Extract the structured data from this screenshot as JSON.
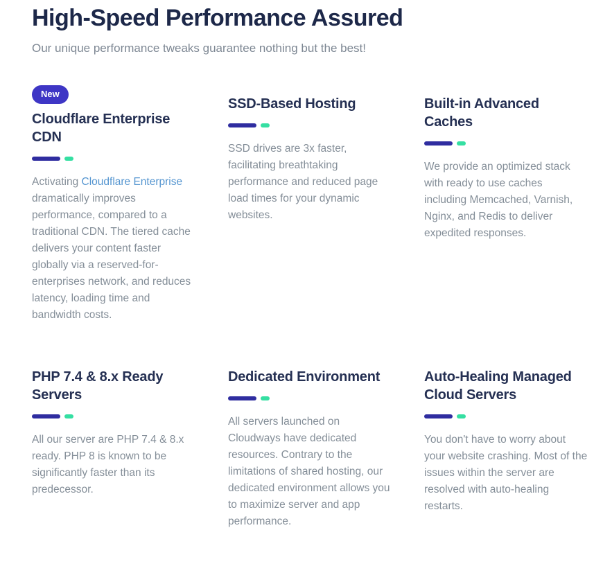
{
  "header": {
    "title": "High-Speed Performance Assured",
    "subtitle": "Our unique performance tweaks guarantee nothing but the best!"
  },
  "colors": {
    "heading": "#1d2849",
    "card_title": "#253053",
    "body_text": "#848e98",
    "badge_bg": "#3e36c5",
    "badge_text": "#ffffff",
    "underline_bar": "#2f2da0",
    "underline_dash": "#35dfa2",
    "link": "#5495d0",
    "background": "#ffffff"
  },
  "features": [
    {
      "badge": "New",
      "title": "Cloudflare Enterprise CDN",
      "body_prefix": "Activating ",
      "link_text": "Cloudflare Enterprise",
      "body_suffix": " dramatically improves performance, compared to a traditional CDN. The tiered cache delivers your content faster globally via a reserved-for-enterprises network, and reduces latency, loading time and bandwidth costs."
    },
    {
      "title": "SSD-Based Hosting",
      "body": "SSD drives are 3x faster, facilitating breathtaking performance and reduced page load times for your dynamic websites."
    },
    {
      "title": "Built-in Advanced Caches",
      "body": "We provide an optimized stack with ready to use caches including Memcached, Varnish, Nginx, and Redis to deliver expedited responses."
    },
    {
      "title": "PHP 7.4 & 8.x Ready Servers",
      "body": "All our server are PHP 7.4 & 8.x ready. PHP 8 is known to be significantly faster than its predecessor."
    },
    {
      "title": "Dedicated Environment",
      "body": "All servers launched on Cloudways have dedicated resources. Contrary to the limitations of shared hosting, our dedicated environment allows you to maximize server and app performance."
    },
    {
      "title": "Auto-Healing Managed Cloud Servers",
      "body": "You don't have to worry about your website crashing. Most of the issues within the server are resolved with auto-healing restarts."
    }
  ]
}
